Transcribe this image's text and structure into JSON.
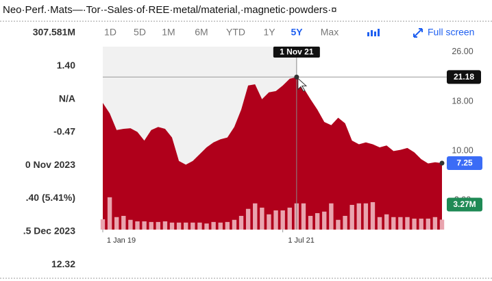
{
  "header": {
    "title": "Neo·Perf.·Mats—·Tor·-Sales·of·REE·metal/material,·magnetic·powders·¤"
  },
  "stats": [
    "307.581M",
    "1.40",
    "N/A",
    "-0.47",
    "0 Nov 2023",
    ".40 (5.41%)",
    ".5 Dec 2023",
    "12.32"
  ],
  "toolbar": {
    "ranges": [
      {
        "label": "1D",
        "active": false
      },
      {
        "label": "5D",
        "active": false
      },
      {
        "label": "1M",
        "active": false
      },
      {
        "label": "6M",
        "active": false
      },
      {
        "label": "YTD",
        "active": false
      },
      {
        "label": "1Y",
        "active": false
      },
      {
        "label": "5Y",
        "active": true
      },
      {
        "label": "Max",
        "active": false
      }
    ],
    "full_screen": "Full screen"
  },
  "chart_data": {
    "type": "area",
    "categories": [
      "1 Jan 19",
      null,
      null,
      null,
      null,
      null,
      null,
      null,
      null,
      null,
      null,
      null,
      null,
      null,
      null,
      null,
      null,
      null,
      null,
      null,
      null,
      null,
      null,
      null,
      null,
      null,
      "1 Jul 21",
      null,
      null,
      null,
      null,
      null,
      null,
      null,
      null,
      null,
      null,
      null,
      null,
      null,
      null,
      null,
      null,
      null,
      null,
      null,
      null,
      null,
      null,
      null
    ],
    "series": [
      {
        "color": "#b0001b",
        "values": [
          17.0,
          15.3,
          12.6,
          12.8,
          12.9,
          12.3,
          10.9,
          12.6,
          13.1,
          12.8,
          11.4,
          7.6,
          7.0,
          7.6,
          8.7,
          9.8,
          10.6,
          11.1,
          11.4,
          13.1,
          15.9,
          19.8,
          20.0,
          17.6,
          18.7,
          18.9,
          19.8,
          20.9,
          21.18,
          19.4,
          17.6,
          15.9,
          13.9,
          13.4,
          14.6,
          13.7,
          10.9,
          10.3,
          10.6,
          10.3,
          9.8,
          10.1,
          9.2,
          9.4,
          9.7,
          9.0,
          7.9,
          7.2,
          7.4,
          7.25
        ],
        "value_labels": [
          null,
          null,
          null,
          null,
          null,
          null,
          null,
          null,
          null,
          null,
          null,
          null,
          null,
          null,
          null,
          null,
          null,
          null,
          null,
          null,
          null,
          null,
          null,
          null,
          null,
          null,
          null,
          null,
          null,
          null,
          null,
          null,
          null,
          null,
          null,
          null,
          null,
          null,
          null,
          null,
          null,
          null,
          null,
          null,
          null,
          null,
          null,
          null,
          null,
          "7.25"
        ]
      },
      {
        "type": "bar",
        "axis": "y2",
        "color": "#e9a4ae",
        "values": [
          3.4,
          10.6,
          4.1,
          4.5,
          3.2,
          2.7,
          2.7,
          2.5,
          2.5,
          2.7,
          2.3,
          2.3,
          2.3,
          2.3,
          2.3,
          2.0,
          2.5,
          2.3,
          2.5,
          3.2,
          4.5,
          6.8,
          8.6,
          7.2,
          5.0,
          6.3,
          6.3,
          7.2,
          8.6,
          8.6,
          4.5,
          5.4,
          5.9,
          8.6,
          3.2,
          4.5,
          8.1,
          8.6,
          8.6,
          9.0,
          4.1,
          5.0,
          4.1,
          4.1,
          4.1,
          3.6,
          3.6,
          3.6,
          4.1,
          3.27
        ],
        "value_labels": [
          null,
          null,
          null,
          null,
          null,
          null,
          null,
          null,
          null,
          null,
          null,
          null,
          null,
          null,
          null,
          null,
          null,
          null,
          null,
          null,
          null,
          null,
          null,
          null,
          null,
          null,
          null,
          null,
          null,
          null,
          null,
          null,
          null,
          null,
          null,
          null,
          null,
          null,
          null,
          null,
          null,
          null,
          null,
          null,
          null,
          null,
          null,
          null,
          null,
          "3.27M"
        ]
      }
    ],
    "ylim": [
      -3.5,
      26.1
    ],
    "yticks": [
      {
        "value": 26,
        "label": "26.00"
      },
      {
        "value": 18,
        "label": "18.00"
      },
      {
        "value": 10,
        "label": "10.00"
      },
      {
        "value": 2,
        "label": "2.00"
      }
    ],
    "y2lim": [
      0,
      60
    ],
    "grid": false,
    "crosshair": {
      "x": "1 Nov 21",
      "y": {
        "value": 21.18,
        "label": "21.18"
      }
    }
  }
}
